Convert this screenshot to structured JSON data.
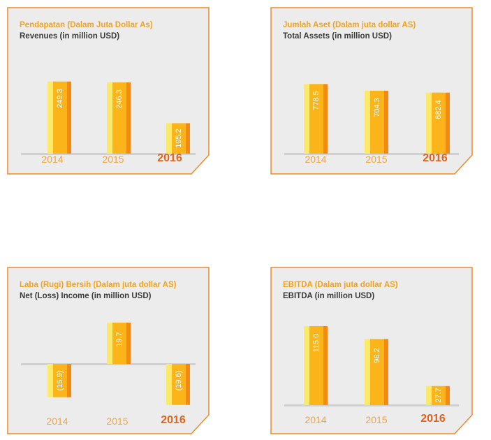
{
  "chart_data": [
    {
      "type": "bar",
      "title": "Pendapatan (Dalam Juta Dollar As)",
      "subtitle": "Revenues (in million USD)",
      "categories": [
        "2014",
        "2015",
        "2016"
      ],
      "values": [
        249.3,
        246.3,
        105.2
      ],
      "value_labels": [
        "249.3",
        "246.3",
        "105.2"
      ],
      "highlight": "2016",
      "ylim": [
        0,
        280
      ]
    },
    {
      "type": "bar",
      "title": "Jumlah Aset (Dalam juta dollar AS)",
      "subtitle": "Total Assets (in million USD)",
      "categories": [
        "2014",
        "2015",
        "2016"
      ],
      "values": [
        778.5,
        704.3,
        682.4
      ],
      "value_labels": [
        "778.5",
        "704.3",
        "682.4"
      ],
      "highlight": "2016",
      "ylim": [
        0,
        1000
      ]
    },
    {
      "type": "bar",
      "title": "Laba (Rugi) Bersih (Dalam juta dollar AS)",
      "subtitle": "Net (Loss) Income (in million USD)",
      "categories": [
        "2014",
        "2015",
        "2016"
      ],
      "values": [
        -15.9,
        19.7,
        -19.6
      ],
      "value_labels": [
        "(15.9)",
        "19.7",
        "(19.6)"
      ],
      "highlight": "2016",
      "ylim": [
        -20,
        20
      ]
    },
    {
      "type": "bar",
      "title": "EBITDA (Dalam juta dollar AS)",
      "subtitle": "EBITDA (in million USD)",
      "categories": [
        "2014",
        "2015",
        "2016"
      ],
      "values": [
        115.0,
        96.2,
        27.7
      ],
      "value_labels": [
        "115.0",
        "96.2",
        "27.7"
      ],
      "highlight": "2016",
      "ylim": [
        0,
        120
      ]
    }
  ],
  "colors": {
    "border": "#f08a2a",
    "panel_bg": "#ececec",
    "bar_left": "#fbe96a",
    "bar_mid": "#fbb51a",
    "bar_right": "#f28a14",
    "title_accent": "#f5a21b",
    "year_text": "#f2a34a",
    "year_current": "#e4631c"
  }
}
